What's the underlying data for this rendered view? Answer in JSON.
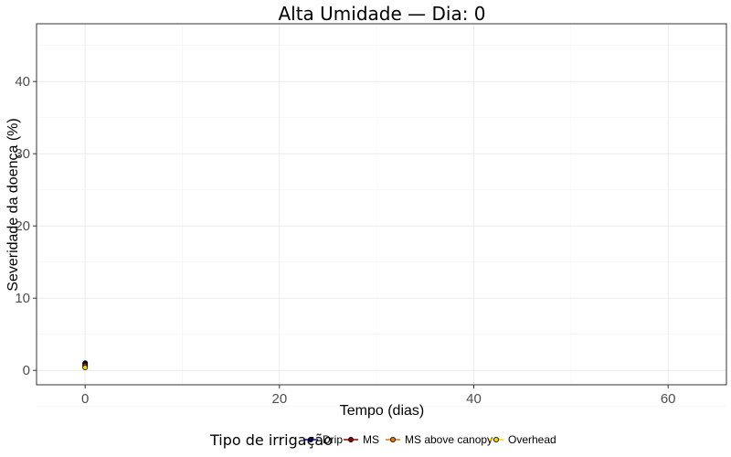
{
  "chart_data": {
    "type": "line",
    "title": "Alta Umidade — Dia: 0",
    "xlabel": "Tempo (dias)",
    "ylabel": "Severidade da doença (%)",
    "xlim": [
      -5,
      66
    ],
    "ylim": [
      -2,
      48
    ],
    "x_ticks": [
      0,
      20,
      40,
      60
    ],
    "y_ticks": [
      0,
      10,
      20,
      30,
      40
    ],
    "grid": true,
    "legend_position": "bottom",
    "legend_title": "Tipo de irrigação",
    "series": [
      {
        "name": "Drip",
        "color": "#0a0a5c",
        "x": [
          0
        ],
        "values": [
          1.0
        ]
      },
      {
        "name": "MS",
        "color": "#8b0000",
        "x": [
          0
        ],
        "values": [
          0.8
        ]
      },
      {
        "name": "MS above canopy",
        "color": "#e07b00",
        "x": [
          0
        ],
        "values": [
          0.6
        ]
      },
      {
        "name": "Overhead",
        "color": "#f2d600",
        "x": [
          0
        ],
        "values": [
          0.4
        ]
      }
    ]
  }
}
